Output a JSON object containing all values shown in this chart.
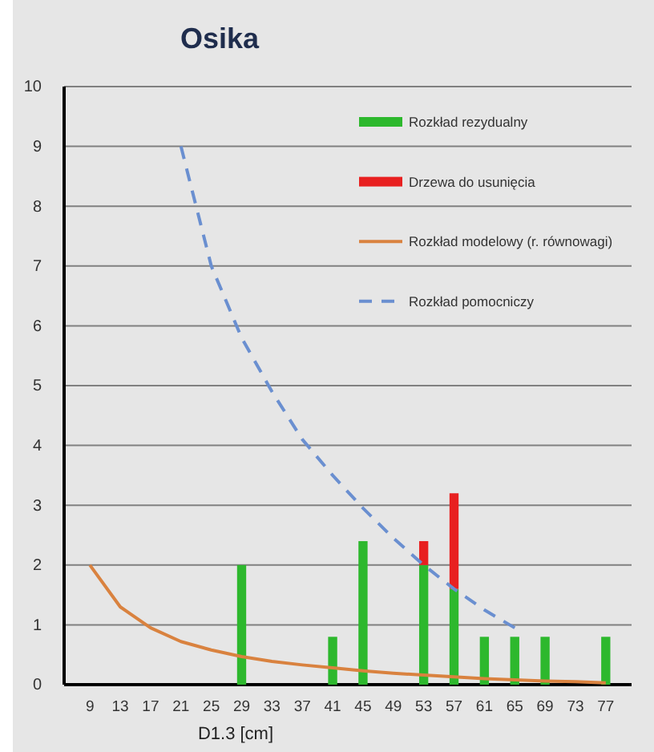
{
  "chart_data": {
    "type": "bar",
    "title": "Osika",
    "xlabel": "D1.3  [cm]",
    "stacked": true,
    "grid": "y",
    "legend": "top right",
    "categories": [
      "9",
      "13",
      "17",
      "21",
      "25",
      "29",
      "33",
      "37",
      "41",
      "45",
      "49",
      "53",
      "57",
      "61",
      "65",
      "69",
      "73",
      "77"
    ],
    "ylim": [
      0,
      10
    ],
    "yticks": [
      0,
      1,
      2,
      3,
      4,
      5,
      6,
      7,
      8,
      9,
      10
    ],
    "series": [
      {
        "name": "Rozkład rezydualny",
        "color": "#2db82d",
        "values": [
          0,
          0,
          0,
          0,
          0,
          2,
          0,
          0,
          0.8,
          2.4,
          0,
          2,
          1.6,
          0.8,
          0.8,
          0.8,
          0,
          0.8
        ]
      },
      {
        "name": "Drzewa do usunięcia",
        "color": "#e82020",
        "values": [
          0,
          0,
          0,
          0,
          0,
          0,
          0,
          0,
          0,
          0,
          0,
          0.4,
          1.6,
          0,
          0,
          0,
          0,
          0
        ]
      },
      {
        "name": "Rozkład modelowy (r. równowagi)",
        "type": "line",
        "color": "#d9823f",
        "line_style": "solid",
        "values": [
          2,
          1.3,
          0.95,
          0.72,
          0.58,
          0.47,
          0.39,
          0.33,
          0.28,
          0.23,
          0.19,
          0.16,
          0.13,
          0.1,
          0.08,
          0.06,
          0.05,
          0.03
        ]
      },
      {
        "name": "Rozkład pomocniczy",
        "type": "line",
        "color": "#6a8fd0",
        "line_style": "dashed",
        "values": [
          null,
          null,
          null,
          9,
          7,
          5.8,
          4.9,
          4.1,
          3.5,
          2.95,
          2.45,
          2,
          1.6,
          1.25,
          0.95,
          null,
          null,
          null
        ]
      }
    ]
  }
}
